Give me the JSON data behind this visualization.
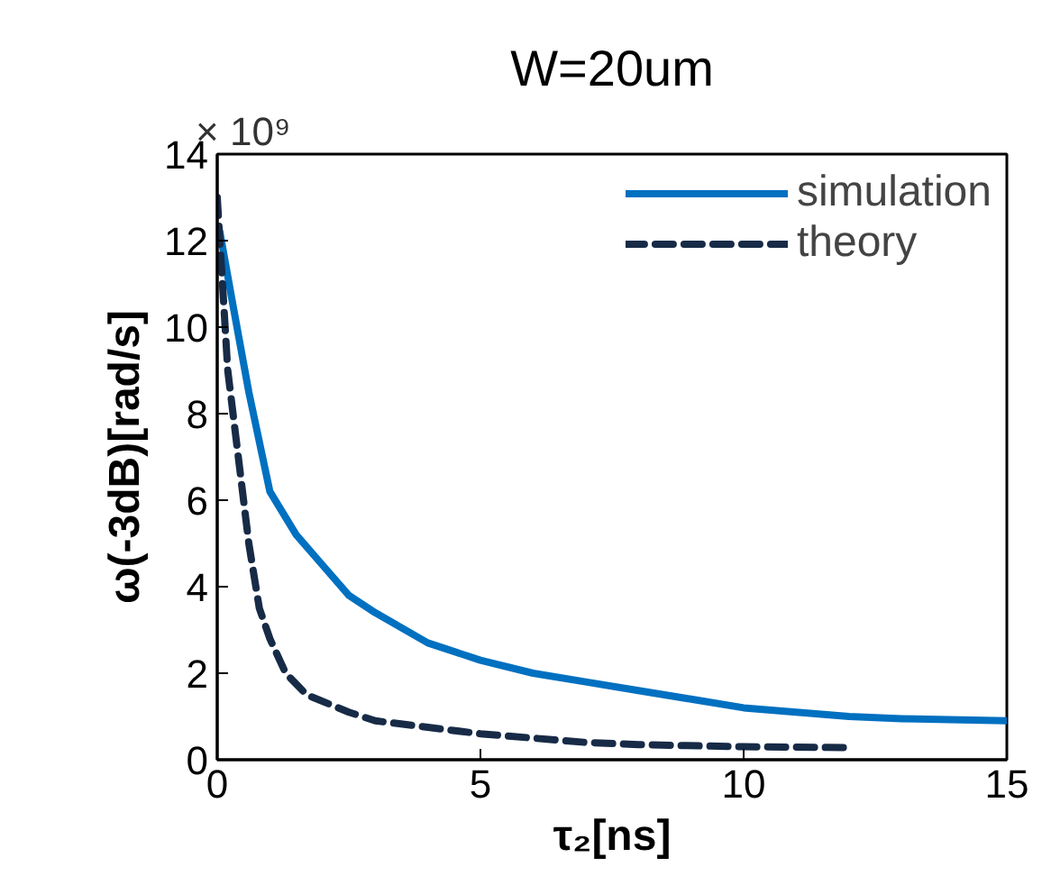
{
  "chart_data": {
    "type": "line",
    "title": "W=20um",
    "xlabel": "τ₂[ns]",
    "ylabel": "ω(-3dB)[rad/s]",
    "annotations": [
      "× 10⁹"
    ],
    "xlim": [
      0,
      15
    ],
    "xticks": [
      0,
      5,
      10,
      15
    ],
    "ylim": [
      0,
      14
    ],
    "yticks": [
      0,
      2,
      4,
      6,
      8,
      10,
      12,
      14
    ],
    "grid": false,
    "legend": "top right",
    "series": [
      {
        "name": "simulation",
        "color": "#0070c0",
        "line_style": "solid",
        "x": [
          0.05,
          0.3,
          0.6,
          1.0,
          1.5,
          2,
          2.5,
          3,
          4,
          5,
          6,
          7,
          8,
          9,
          10,
          11,
          12,
          13,
          15
        ],
        "values": [
          12.2,
          10.5,
          8.5,
          6.2,
          5.2,
          4.5,
          3.8,
          3.4,
          2.7,
          2.3,
          2.0,
          1.8,
          1.6,
          1.4,
          1.2,
          1.1,
          1.0,
          0.95,
          0.9
        ]
      },
      {
        "name": "theory",
        "color": "#172b47",
        "line_style": "dashed",
        "x": [
          0.0,
          0.1,
          0.2,
          0.4,
          0.6,
          0.8,
          1.0,
          1.3,
          1.7,
          2.5,
          3,
          4,
          5,
          6,
          7,
          8,
          10,
          12
        ],
        "values": [
          13,
          11,
          9,
          7,
          5,
          3.5,
          2.8,
          2.0,
          1.5,
          1.1,
          0.9,
          0.75,
          0.6,
          0.5,
          0.4,
          0.35,
          0.3,
          0.28
        ]
      }
    ]
  }
}
